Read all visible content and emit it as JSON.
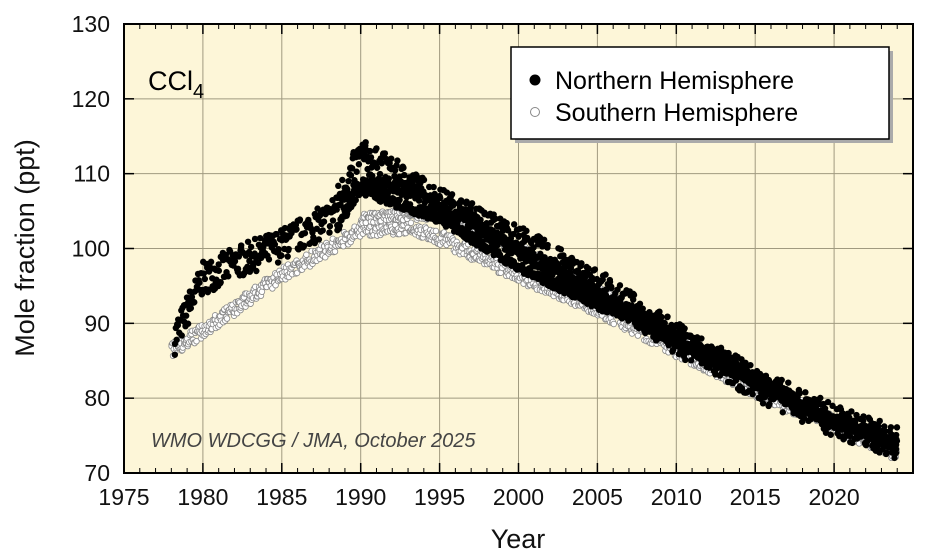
{
  "chart_data": {
    "type": "scatter",
    "title": "",
    "species_label": "CCl",
    "species_subscript": "4",
    "xlabel": "Year",
    "ylabel": "Mole fraction (ppt)",
    "xlim": [
      1975,
      2025
    ],
    "ylim": [
      70,
      130
    ],
    "x_ticks": [
      1975,
      1980,
      1985,
      1990,
      1995,
      2000,
      2005,
      2010,
      2015,
      2020
    ],
    "y_ticks": [
      70,
      80,
      90,
      100,
      110,
      120,
      130
    ],
    "x_minor_step": 1,
    "grid": true,
    "legend_position": "top-right",
    "credit": "WMO WDCGG / JMA, October 2025",
    "colors": {
      "background": "#fdf6d8",
      "grid": "#a09a80",
      "north": "#000000",
      "south": "#ffffff",
      "south_edge": "#888888"
    },
    "series": [
      {
        "name": "Northern Hemisphere",
        "marker": "filled-circle",
        "bands": [
          {
            "x": [
              1978.2,
              1980,
              1982,
              1985,
              1988,
              1990,
              1992,
              1995,
              2000,
              2005,
              2010,
              2015,
              2020,
              2024
            ],
            "y": [
              88,
              96,
              98,
              100.5,
              104,
              112.5,
              110,
              106,
              101,
              95,
              88,
              82,
              77,
              74
            ],
            "spread": 2.2
          },
          {
            "x": [
              1988.5,
              1990,
              1993,
              1995,
              2000,
              2005,
              2008,
              2010,
              2015,
              2020,
              2024
            ],
            "y": [
              103,
              108.5,
              108,
              106,
              99.5,
              94,
              90.5,
              88.5,
              82.5,
              77,
              74
            ],
            "spread": 0.9
          },
          {
            "x": [
              1989.5,
              1991,
              1995,
              2000,
              2005,
              2008,
              2010,
              2015,
              2020,
              2024
            ],
            "y": [
              108,
              107,
              104,
              97.5,
              92.5,
              90,
              87.5,
              82,
              76.5,
              74
            ],
            "spread": 0.6
          }
        ]
      },
      {
        "name": "Southern Hemisphere",
        "marker": "open-circle",
        "bands": [
          {
            "x": [
              1978,
              1980,
              1982,
              1985,
              1988,
              1990,
              1993,
              1995,
              2000,
              2005,
              2010,
              2015,
              2020,
              2024
            ],
            "y": [
              86.5,
              89,
              92,
              96.5,
              100,
              102.5,
              103,
              101.5,
              96.5,
              92,
              86.5,
              81,
              76.5,
              72.5
            ],
            "spread": 1.0
          },
          {
            "x": [
              1990,
              1993,
              1995,
              2000,
              2005,
              2010,
              2015,
              2020,
              2024
            ],
            "y": [
              104,
              104.5,
              104.5,
              100,
              94.5,
              88,
              82,
              77,
              73
            ],
            "spread": 0.7
          }
        ]
      }
    ]
  }
}
